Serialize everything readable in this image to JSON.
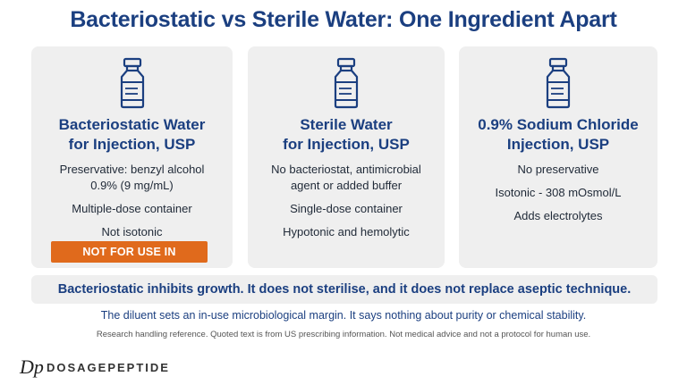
{
  "header": {
    "title": "Bacteriostatic vs Sterile Water: One Ingredient Apart"
  },
  "cards": [
    {
      "title_lines": [
        "Bacteriostatic Water",
        "for Injection, USP"
      ],
      "items": [
        [
          "Preservative: benzyl alcohol",
          "0.9% (9 mg/mL)"
        ],
        [
          "Multiple-dose container"
        ],
        [
          "Not isotonic"
        ]
      ],
      "warning": "NOT FOR USE IN NEONATES"
    },
    {
      "title_lines": [
        "Sterile Water",
        "for Injection, USP"
      ],
      "items": [
        [
          "No bacteriostat, antimicrobial",
          "agent or added buffer"
        ],
        [
          "Single-dose container"
        ],
        [
          "Hypotonic and hemolytic"
        ]
      ]
    },
    {
      "title_lines": [
        "0.9% Sodium Chloride",
        "Injection, USP"
      ],
      "items": [
        [
          "No preservative"
        ],
        [
          "Isotonic - 308 mOsmol/L"
        ],
        [
          "Adds electrolytes"
        ]
      ]
    }
  ],
  "banner": "Bacteriostatic inhibits growth. It does not sterilise, and it does not replace aseptic technique.",
  "note": "The diluent sets an in-use microbiological margin. It says nothing about purity or chemical stability.",
  "disclaimer": "Research handling reference. Quoted text is from US prescribing information. Not medical advice and not a protocol for human use.",
  "brand": {
    "logo": "Dp",
    "name": "DOSAGEPEPTIDE"
  }
}
